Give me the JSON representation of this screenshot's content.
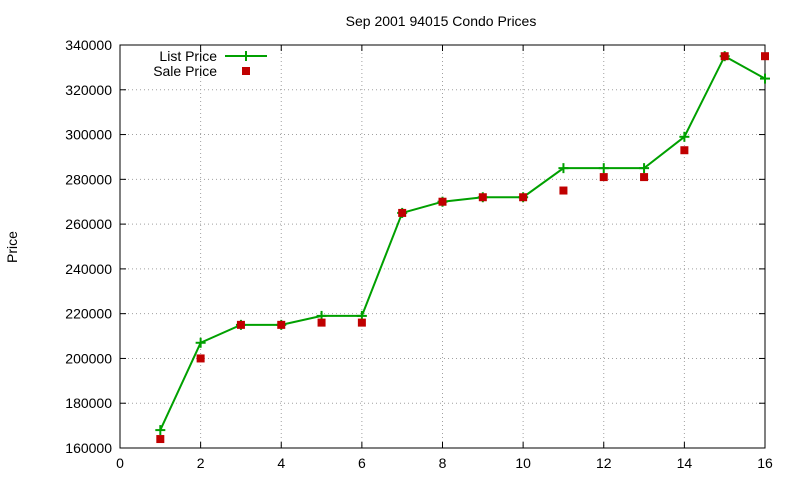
{
  "chart_data": {
    "type": "line",
    "title": "Sep 2001 94015 Condo Prices",
    "xlabel": "",
    "ylabel": "Price",
    "xlim": [
      0,
      16
    ],
    "ylim": [
      160000,
      340000
    ],
    "xticks": [
      0,
      2,
      4,
      6,
      8,
      10,
      12,
      14,
      16
    ],
    "yticks": [
      160000,
      180000,
      200000,
      220000,
      240000,
      260000,
      280000,
      300000,
      320000,
      340000
    ],
    "grid": true,
    "legend_position": "top-left",
    "series": [
      {
        "name": "List Price",
        "style": "line+cross",
        "color": "#00a000",
        "x": [
          1,
          2,
          3,
          4,
          5,
          6,
          7,
          8,
          9,
          10,
          11,
          12,
          13,
          14,
          15,
          16
        ],
        "y": [
          168000,
          207000,
          215000,
          215000,
          219000,
          219000,
          265000,
          270000,
          272000,
          272000,
          285000,
          285000,
          285000,
          299000,
          335000,
          325000
        ]
      },
      {
        "name": "Sale Price",
        "style": "square",
        "color": "#c00000",
        "x": [
          1,
          2,
          3,
          4,
          5,
          6,
          7,
          8,
          9,
          10,
          11,
          12,
          13,
          14,
          15,
          16
        ],
        "y": [
          164000,
          200000,
          215000,
          215000,
          216000,
          216000,
          265000,
          270000,
          272000,
          272000,
          275000,
          281000,
          281000,
          293000,
          335000,
          335000
        ]
      }
    ]
  }
}
